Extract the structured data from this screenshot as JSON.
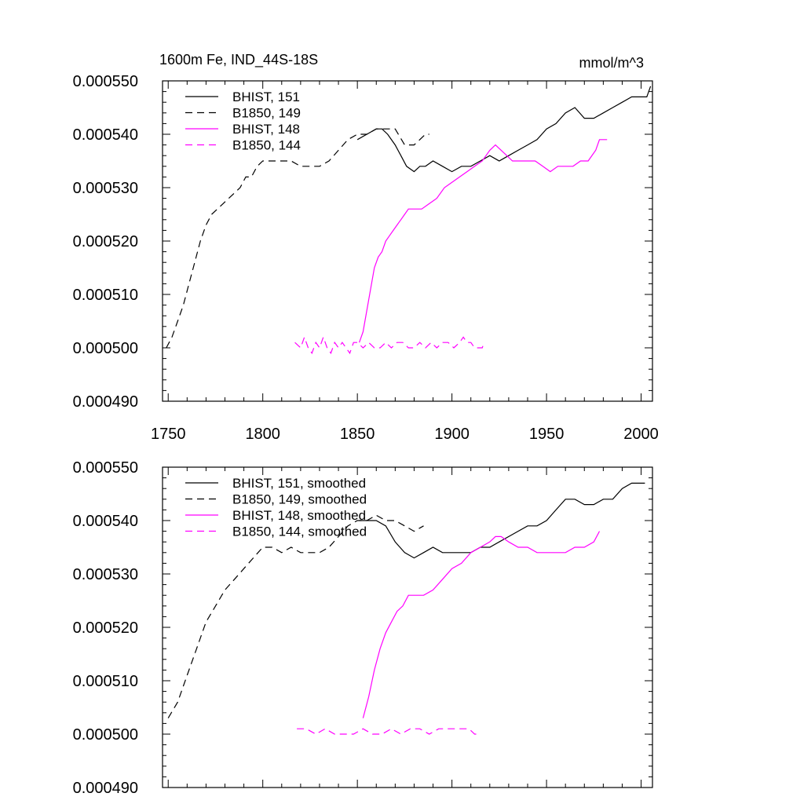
{
  "chart_data": [
    {
      "type": "line",
      "title": "1600m Fe, IND_44S-18S",
      "units": "mmol/m^3",
      "xlabel": "",
      "ylabel": "",
      "xlim": [
        1747,
        2006
      ],
      "ylim": [
        0.00049,
        0.00055
      ],
      "xticks": [
        1750,
        1800,
        1850,
        1900,
        1950,
        2000
      ],
      "xtick_labels": [
        "1750",
        "1800",
        "1850",
        "1900",
        "1950",
        "2000"
      ],
      "yticks": [
        0.00049,
        0.0005,
        0.00051,
        0.00052,
        0.00053,
        0.00054,
        0.00055
      ],
      "ytick_labels": [
        "0.000490",
        "0.000500",
        "0.000510",
        "0.000520",
        "0.000530",
        "0.000540",
        "0.000550"
      ],
      "grid": false,
      "legend_position": "top-left",
      "series": [
        {
          "name": "BHIST, 151",
          "color": "#000000",
          "dash": "solid",
          "x": [
            1850,
            1855,
            1860,
            1863,
            1866,
            1870,
            1873,
            1876,
            1880,
            1883,
            1886,
            1890,
            1895,
            1900,
            1905,
            1910,
            1915,
            1920,
            1925,
            1930,
            1935,
            1940,
            1945,
            1950,
            1955,
            1960,
            1965,
            1970,
            1975,
            1980,
            1985,
            1990,
            1995,
            2000,
            2003,
            2005
          ],
          "y": [
            0.000539,
            0.00054,
            0.000541,
            0.000541,
            0.00054,
            0.000538,
            0.000536,
            0.000534,
            0.000533,
            0.000534,
            0.000534,
            0.000535,
            0.000534,
            0.000533,
            0.000534,
            0.000534,
            0.000535,
            0.000536,
            0.000535,
            0.000536,
            0.000537,
            0.000538,
            0.000539,
            0.000541,
            0.000542,
            0.000544,
            0.000545,
            0.000543,
            0.000543,
            0.000544,
            0.000545,
            0.000546,
            0.000547,
            0.000547,
            0.000547,
            0.000549
          ]
        },
        {
          "name": "B1850, 149",
          "color": "#000000",
          "dash": "dashed",
          "x": [
            1749,
            1752,
            1755,
            1758,
            1761,
            1764,
            1767,
            1770,
            1773,
            1776,
            1779,
            1782,
            1785,
            1788,
            1791,
            1794,
            1797,
            1800,
            1805,
            1810,
            1815,
            1820,
            1825,
            1830,
            1835,
            1840,
            1845,
            1850,
            1855,
            1860,
            1865,
            1870,
            1875,
            1878,
            1880,
            1883,
            1886,
            1888
          ],
          "y": [
            0.0005,
            0.000502,
            0.000505,
            0.000508,
            0.000512,
            0.000516,
            0.00052,
            0.000523,
            0.000525,
            0.000526,
            0.000527,
            0.000528,
            0.000529,
            0.00053,
            0.000532,
            0.000532,
            0.000534,
            0.000535,
            0.000535,
            0.000535,
            0.000535,
            0.000534,
            0.000534,
            0.000534,
            0.000535,
            0.000537,
            0.000539,
            0.00054,
            0.00054,
            0.000541,
            0.000541,
            0.000541,
            0.000538,
            0.000538,
            0.000538,
            0.000539,
            0.00054,
            0.00054
          ]
        },
        {
          "name": "BHIST, 148",
          "color": "#ff00ff",
          "dash": "solid",
          "x": [
            1851,
            1853,
            1855,
            1857,
            1859,
            1861,
            1863,
            1865,
            1867,
            1869,
            1871,
            1873,
            1875,
            1877,
            1880,
            1884,
            1888,
            1892,
            1896,
            1900,
            1904,
            1908,
            1912,
            1916,
            1920,
            1923,
            1926,
            1929,
            1932,
            1936,
            1940,
            1944,
            1948,
            1952,
            1956,
            1960,
            1964,
            1968,
            1972,
            1976,
            1978,
            1980,
            1982
          ],
          "y": [
            0.000501,
            0.000503,
            0.000507,
            0.000511,
            0.000515,
            0.000517,
            0.000518,
            0.00052,
            0.000521,
            0.000522,
            0.000523,
            0.000524,
            0.000525,
            0.000526,
            0.000526,
            0.000526,
            0.000527,
            0.000528,
            0.00053,
            0.000531,
            0.000532,
            0.000533,
            0.000534,
            0.000535,
            0.000537,
            0.000538,
            0.000537,
            0.000536,
            0.000535,
            0.000535,
            0.000535,
            0.000535,
            0.000534,
            0.000533,
            0.000534,
            0.000534,
            0.000534,
            0.000535,
            0.000535,
            0.000537,
            0.000539,
            0.000539,
            0.000539
          ]
        },
        {
          "name": "B1850, 144",
          "color": "#ff00ff",
          "dash": "dashed",
          "x": [
            1817,
            1820,
            1822,
            1824,
            1826,
            1828,
            1830,
            1832,
            1834,
            1836,
            1838,
            1840,
            1842,
            1844,
            1846,
            1848,
            1850,
            1853,
            1856,
            1859,
            1862,
            1865,
            1868,
            1871,
            1874,
            1877,
            1880,
            1883,
            1886,
            1889,
            1892,
            1895,
            1898,
            1901,
            1904,
            1906,
            1908,
            1910,
            1912,
            1914,
            1916,
            1917
          ],
          "y": [
            0.000501,
            0.0005,
            0.000502,
            0.0005,
            0.000499,
            0.000501,
            0.0005,
            0.000502,
            0.0005,
            0.000499,
            0.000501,
            0.0005,
            0.000501,
            0.0005,
            0.000499,
            0.000501,
            0.000501,
            0.0005,
            0.000501,
            0.0005,
            0.0005,
            0.000501,
            0.0005,
            0.000501,
            0.000501,
            0.0005,
            0.0005,
            0.000501,
            0.0005,
            0.000501,
            0.0005,
            0.000501,
            0.000501,
            0.0005,
            0.000501,
            0.000502,
            0.000501,
            0.000501,
            0.0005,
            0.0005,
            0.0005,
            0.000501
          ]
        }
      ]
    },
    {
      "type": "line",
      "title": "",
      "xlabel": "",
      "ylabel": "",
      "xlim": [
        1747,
        2006
      ],
      "ylim": [
        0.00049,
        0.00055
      ],
      "xticks": [
        1750,
        1800,
        1850,
        1900,
        1950,
        2000
      ],
      "yticks": [
        0.00049,
        0.0005,
        0.00051,
        0.00052,
        0.00053,
        0.00054,
        0.00055
      ],
      "ytick_labels": [
        "0.000490",
        "0.000500",
        "0.000510",
        "0.000520",
        "0.000530",
        "0.000540",
        "0.000550"
      ],
      "grid": false,
      "legend_position": "top-left",
      "series": [
        {
          "name": "BHIST, 151, smoothed",
          "color": "#000000",
          "dash": "solid",
          "x": [
            1851,
            1855,
            1860,
            1865,
            1870,
            1875,
            1880,
            1885,
            1890,
            1895,
            1900,
            1905,
            1910,
            1915,
            1920,
            1925,
            1930,
            1935,
            1940,
            1945,
            1950,
            1955,
            1960,
            1965,
            1970,
            1975,
            1980,
            1985,
            1990,
            1995,
            2000,
            2002
          ],
          "y": [
            0.00054,
            0.00054,
            0.00054,
            0.000539,
            0.000536,
            0.000534,
            0.000533,
            0.000534,
            0.000535,
            0.000534,
            0.000534,
            0.000534,
            0.000534,
            0.000535,
            0.000535,
            0.000536,
            0.000537,
            0.000538,
            0.000539,
            0.000539,
            0.00054,
            0.000542,
            0.000544,
            0.000544,
            0.000543,
            0.000543,
            0.000544,
            0.000544,
            0.000546,
            0.000547,
            0.000547,
            0.000547
          ]
        },
        {
          "name": "B1850, 149, smoothed",
          "color": "#000000",
          "dash": "dashed",
          "x": [
            1750,
            1755,
            1760,
            1765,
            1770,
            1775,
            1780,
            1785,
            1790,
            1795,
            1800,
            1805,
            1810,
            1815,
            1820,
            1825,
            1830,
            1835,
            1840,
            1845,
            1850,
            1855,
            1860,
            1865,
            1870,
            1875,
            1880,
            1885
          ],
          "y": [
            0.000503,
            0.000506,
            0.000511,
            0.000516,
            0.000521,
            0.000524,
            0.000527,
            0.000529,
            0.000531,
            0.000533,
            0.000535,
            0.000535,
            0.000534,
            0.000535,
            0.000534,
            0.000534,
            0.000534,
            0.000535,
            0.000537,
            0.000539,
            0.00054,
            0.00054,
            0.000541,
            0.00054,
            0.00054,
            0.000539,
            0.000538,
            0.000539
          ]
        },
        {
          "name": "BHIST, 148, smoothed",
          "color": "#ff00ff",
          "dash": "solid",
          "x": [
            1853,
            1856,
            1859,
            1862,
            1865,
            1868,
            1871,
            1874,
            1877,
            1880,
            1885,
            1890,
            1895,
            1900,
            1905,
            1910,
            1915,
            1920,
            1923,
            1926,
            1930,
            1935,
            1940,
            1945,
            1950,
            1955,
            1960,
            1965,
            1970,
            1975,
            1978
          ],
          "y": [
            0.000503,
            0.000507,
            0.000512,
            0.000516,
            0.000519,
            0.000521,
            0.000523,
            0.000524,
            0.000526,
            0.000526,
            0.000526,
            0.000527,
            0.000529,
            0.000531,
            0.000532,
            0.000534,
            0.000535,
            0.000536,
            0.000537,
            0.000537,
            0.000536,
            0.000535,
            0.000535,
            0.000534,
            0.000534,
            0.000534,
            0.000534,
            0.000535,
            0.000535,
            0.000536,
            0.000538
          ]
        },
        {
          "name": "B1850, 144, smoothed",
          "color": "#ff00ff",
          "dash": "dashed",
          "x": [
            1818,
            1823,
            1828,
            1833,
            1838,
            1843,
            1848,
            1853,
            1858,
            1863,
            1868,
            1873,
            1878,
            1883,
            1888,
            1893,
            1898,
            1903,
            1906,
            1909,
            1912,
            1914
          ],
          "y": [
            0.000501,
            0.000501,
            0.0005,
            0.000501,
            0.0005,
            0.0005,
            0.0005,
            0.000501,
            0.0005,
            0.0005,
            0.000501,
            0.0005,
            0.000501,
            0.000501,
            0.0005,
            0.000501,
            0.000501,
            0.000501,
            0.000501,
            0.000501,
            0.0005,
            0.0005
          ]
        }
      ]
    }
  ]
}
